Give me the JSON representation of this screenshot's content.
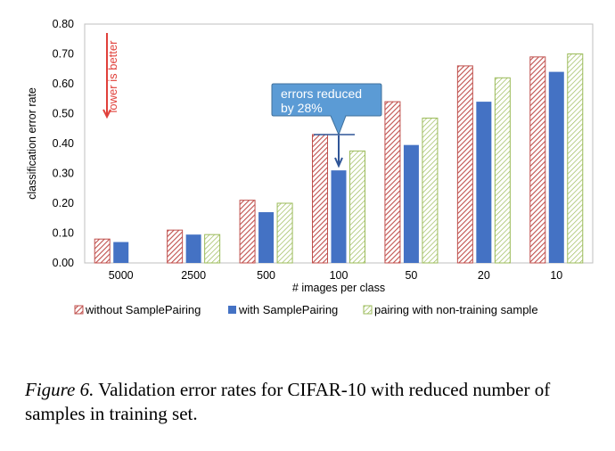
{
  "chart_data": {
    "type": "bar",
    "categories": [
      "5000",
      "2500",
      "500",
      "100",
      "50",
      "20",
      "10"
    ],
    "series": [
      {
        "name": "without SamplePairing",
        "values": [
          0.08,
          0.11,
          0.21,
          0.43,
          0.54,
          0.66,
          0.69
        ],
        "color": "#c0504d",
        "pattern": "hatch"
      },
      {
        "name": "with SamplePairing",
        "values": [
          0.07,
          0.095,
          0.17,
          0.31,
          0.395,
          0.54,
          0.64
        ],
        "color": "#4472c4",
        "pattern": "solid"
      },
      {
        "name": "pairing with non-training sample",
        "values": [
          null,
          0.095,
          0.2,
          0.375,
          0.485,
          0.62,
          0.7
        ],
        "color": "#70ad47",
        "pattern": "hatch"
      }
    ],
    "yticks": [
      "0.00",
      "0.10",
      "0.20",
      "0.30",
      "0.40",
      "0.50",
      "0.60",
      "0.70",
      "0.80"
    ],
    "ylim": [
      0,
      0.8
    ],
    "xlabel": "# images per class",
    "ylabel": "classification error rate",
    "legend_position": "bottom",
    "grid": false,
    "annotations": {
      "callout": {
        "lines": [
          "errors reduced",
          "by 28%"
        ],
        "category": "100"
      },
      "hint": "lower is better"
    }
  },
  "caption": {
    "lead": "Figure 6.",
    "text": " Validation error rates for CIFAR-10 with reduced number of samples in training set."
  }
}
